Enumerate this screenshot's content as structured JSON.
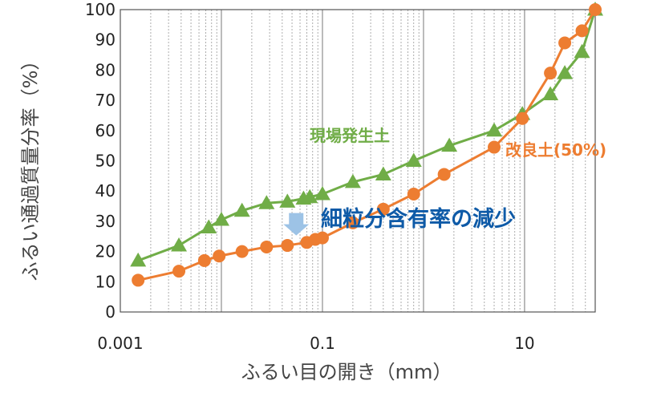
{
  "chart_data": {
    "type": "scatter",
    "x_scale": "log",
    "xlabel": "ふるい目の開き（mm）",
    "ylabel": "ふるい通過質量分率（%）",
    "xlim": [
      0.001,
      50
    ],
    "ylim": [
      0,
      100
    ],
    "x_ticks": [
      "0.001",
      "0.1",
      "10"
    ],
    "y_ticks": [
      "0",
      "10",
      "20",
      "30",
      "40",
      "50",
      "60",
      "70",
      "80",
      "90",
      "100"
    ],
    "grid": "vertical minor lines",
    "series": [
      {
        "name": "現場発生土",
        "color": "#70AD47",
        "marker": "triangle",
        "x": [
          0.0015,
          0.0038,
          0.0075,
          0.01,
          0.016,
          0.028,
          0.045,
          0.065,
          0.075,
          0.1,
          0.2,
          0.4,
          0.8,
          1.8,
          5,
          9.5,
          18,
          25,
          37
        ],
        "y": [
          17,
          22,
          28,
          30.5,
          33.5,
          36,
          36.5,
          37.5,
          38,
          39,
          43,
          45.5,
          50,
          55,
          60,
          65.5,
          72,
          79,
          86
        ]
      },
      {
        "name": "改良土(50%)",
        "color": "#ED7D31",
        "marker": "circle",
        "x": [
          0.0015,
          0.0038,
          0.0068,
          0.0095,
          0.016,
          0.028,
          0.045,
          0.07,
          0.085,
          0.1,
          0.2,
          0.4,
          0.8,
          1.6,
          5,
          9.5,
          18,
          25,
          37
        ],
        "y": [
          10.5,
          13.5,
          17,
          18.5,
          20,
          21.5,
          22,
          23,
          24,
          24.5,
          29.5,
          34,
          39,
          45.5,
          54.5,
          64,
          79,
          89,
          93
        ]
      }
    ],
    "series_endpoint": {
      "x": 50,
      "y": 100
    },
    "annotation": {
      "text": "細粒分含有率の減少",
      "color": "#0E5AA7",
      "arrow_color": "#9DC3E6",
      "arrow_at": {
        "x": 0.055,
        "y": 29
      }
    }
  }
}
